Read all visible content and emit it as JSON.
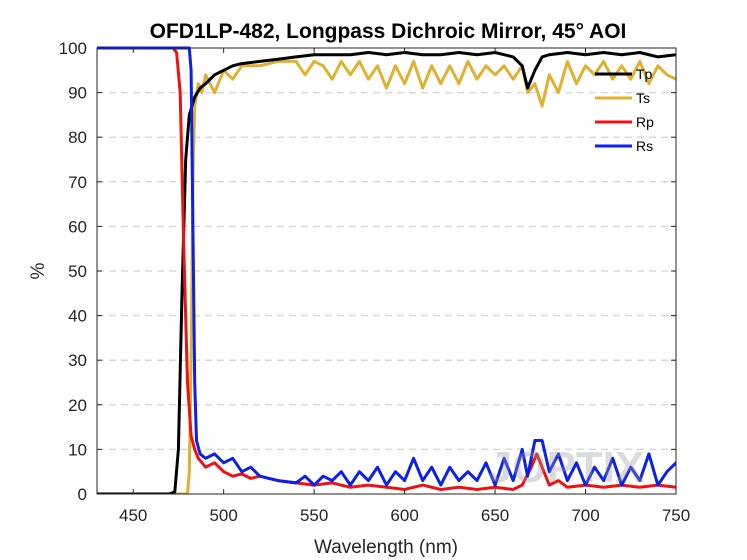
{
  "chart_data": {
    "type": "line",
    "title": "OFD1LP-482, Longpass Dichroic Mirror, 45° AOI",
    "xlabel": "Wavelength (nm)",
    "ylabel": "%",
    "xlim": [
      430,
      750
    ],
    "ylim": [
      0,
      100
    ],
    "xticks": [
      450,
      500,
      550,
      600,
      650,
      700,
      750
    ],
    "yticks": [
      0,
      10,
      20,
      30,
      40,
      50,
      60,
      70,
      80,
      90,
      100
    ],
    "grid": "horizontal dashed",
    "legend_position": "top-right",
    "watermark": "JOPTIX",
    "series": [
      {
        "name": "Tp",
        "color": "#000000",
        "x": [
          430,
          470,
          473,
          475,
          477,
          479,
          481,
          484,
          487,
          490,
          495,
          500,
          505,
          510,
          520,
          530,
          540,
          550,
          560,
          570,
          580,
          590,
          600,
          610,
          620,
          630,
          640,
          650,
          660,
          665,
          668,
          672,
          676,
          680,
          690,
          700,
          710,
          720,
          730,
          740,
          750
        ],
        "y": [
          0,
          0,
          0.5,
          10,
          45,
          75,
          85,
          89,
          91,
          92,
          94,
          95,
          96,
          96.5,
          97,
          97.5,
          98,
          98.5,
          98.5,
          98.5,
          99,
          98.5,
          99,
          98.5,
          98.5,
          99,
          98.5,
          99,
          98,
          96,
          91,
          95,
          98,
          98.5,
          99,
          98.5,
          99,
          98.5,
          99,
          98,
          98.5
        ]
      },
      {
        "name": "Ts",
        "color": "#e0b030",
        "x": [
          430,
          480,
          481,
          482,
          483,
          484,
          486,
          488,
          490,
          495,
          500,
          505,
          510,
          520,
          530,
          540,
          545,
          550,
          555,
          560,
          565,
          570,
          575,
          580,
          585,
          590,
          595,
          600,
          605,
          610,
          615,
          620,
          625,
          630,
          635,
          640,
          645,
          650,
          655,
          660,
          665,
          668,
          672,
          676,
          680,
          685,
          690,
          695,
          700,
          705,
          710,
          715,
          720,
          725,
          730,
          735,
          740,
          745,
          750
        ],
        "y": [
          0,
          0,
          5,
          30,
          70,
          87,
          92,
          90,
          94,
          90,
          95,
          93,
          96,
          96,
          97,
          97,
          94,
          97,
          96,
          93,
          97,
          94,
          97,
          93,
          96,
          91,
          96,
          92,
          97,
          91,
          96,
          92,
          96,
          92,
          97,
          93,
          96,
          94,
          96,
          93,
          96,
          90,
          92,
          87,
          94,
          90,
          97,
          92,
          96,
          94,
          97,
          93,
          96,
          93,
          97,
          92,
          96,
          94,
          93
        ]
      },
      {
        "name": "Rp",
        "color": "#ee1111",
        "x": [
          430,
          472,
          474,
          476,
          478,
          480,
          482,
          484,
          486,
          490,
          495,
          500,
          505,
          510,
          515,
          520,
          525,
          530,
          540,
          550,
          560,
          570,
          580,
          590,
          600,
          610,
          620,
          630,
          640,
          650,
          660,
          665,
          670,
          673,
          676,
          680,
          685,
          690,
          700,
          710,
          720,
          730,
          740,
          750
        ],
        "y": [
          100,
          100,
          99,
          90,
          55,
          25,
          13,
          10,
          8,
          6,
          7,
          5,
          4,
          4.5,
          3.5,
          4,
          3.5,
          3,
          2.5,
          2,
          2.5,
          1.5,
          2,
          1.5,
          1,
          2,
          1,
          1.5,
          1,
          1.5,
          1,
          2,
          6,
          9,
          6,
          2,
          3,
          1.5,
          2,
          1.5,
          2,
          1.5,
          2,
          1.5
        ]
      },
      {
        "name": "Rs",
        "color": "#0b20e8",
        "x": [
          430,
          481,
          482,
          483,
          484,
          485,
          487,
          490,
          495,
          500,
          505,
          510,
          515,
          520,
          530,
          540,
          545,
          550,
          555,
          560,
          565,
          570,
          575,
          580,
          585,
          590,
          595,
          600,
          605,
          610,
          615,
          620,
          625,
          630,
          635,
          640,
          645,
          650,
          655,
          660,
          665,
          668,
          672,
          676,
          680,
          685,
          690,
          695,
          700,
          705,
          710,
          715,
          720,
          725,
          730,
          735,
          740,
          745,
          750
        ],
        "y": [
          100,
          100,
          95,
          60,
          25,
          12,
          9,
          8,
          9,
          7,
          8,
          5,
          6,
          4,
          3,
          2.5,
          4,
          2,
          4,
          3,
          5,
          2,
          5,
          3,
          6,
          2,
          5,
          3,
          8,
          3,
          6,
          2,
          6,
          3,
          5,
          3,
          7,
          2,
          8,
          3,
          10,
          4,
          12,
          12,
          5,
          9,
          3,
          7,
          2,
          6,
          3,
          8,
          2,
          6,
          3,
          9,
          2,
          5,
          7
        ]
      }
    ]
  }
}
